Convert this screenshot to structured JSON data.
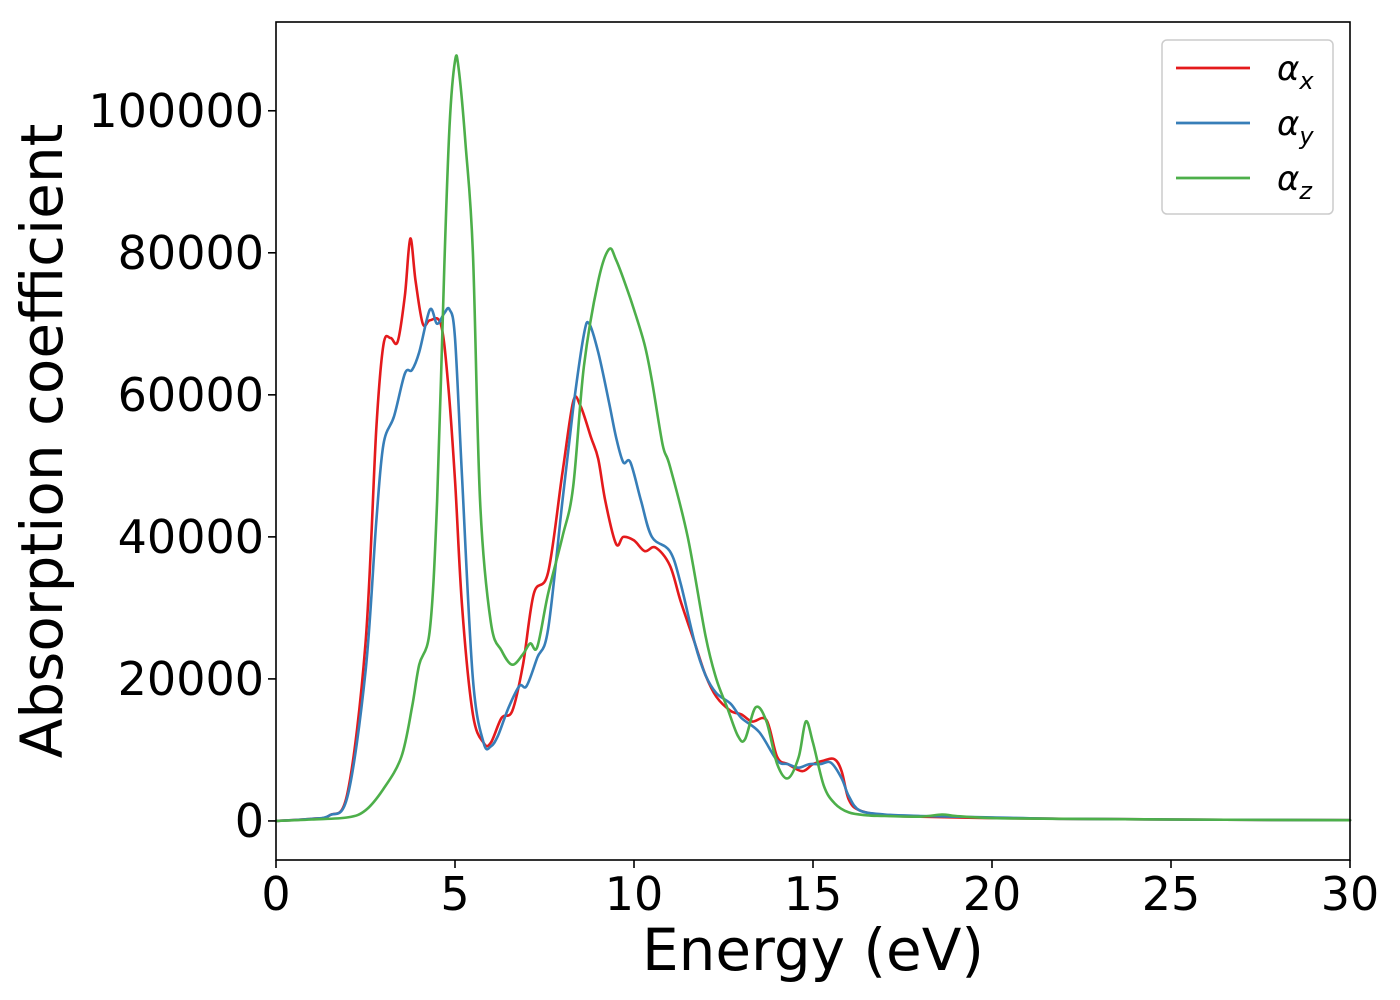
{
  "chart_data": {
    "type": "line",
    "title": "",
    "xlabel": "Energy (eV)",
    "ylabel": "Absorption coefficient",
    "xlim": [
      0,
      30
    ],
    "ylim": [
      -5500,
      112500
    ],
    "x_ticks": [
      0,
      5,
      10,
      15,
      20,
      25,
      30
    ],
    "x_tick_labels": [
      "0",
      "5",
      "10",
      "15",
      "20",
      "25",
      "30"
    ],
    "y_ticks": [
      0,
      20000,
      40000,
      60000,
      80000,
      100000
    ],
    "y_tick_labels": [
      "0",
      "20000",
      "40000",
      "60000",
      "80000",
      "100000"
    ],
    "grid": false,
    "legend_position": "top-right",
    "series": [
      {
        "name": "αx",
        "symbol": "α",
        "subscript": "x",
        "color": "#e41a1c",
        "x": [
          0,
          1.0,
          1.5,
          2.0,
          2.5,
          2.8,
          3.0,
          3.2,
          3.4,
          3.6,
          3.75,
          3.9,
          4.1,
          4.3,
          4.6,
          4.8,
          5.0,
          5.2,
          5.5,
          5.8,
          6.0,
          6.3,
          6.6,
          6.9,
          7.2,
          7.6,
          8.0,
          8.3,
          8.5,
          8.8,
          9.0,
          9.2,
          9.5,
          9.7,
          10.0,
          10.3,
          10.6,
          11.0,
          11.3,
          11.7,
          12.0,
          12.3,
          12.7,
          13.0,
          13.3,
          13.7,
          14.0,
          14.3,
          14.7,
          15.0,
          15.3,
          15.6,
          15.8,
          16.0,
          16.3,
          17.0,
          18.0,
          19.0,
          20.0,
          22.0,
          25.0,
          30.0
        ],
        "y": [
          0,
          300,
          800,
          4000,
          25000,
          55000,
          67000,
          68000,
          67500,
          74000,
          82000,
          76000,
          70000,
          70500,
          70000,
          62000,
          48000,
          30000,
          15000,
          11000,
          11000,
          14500,
          15500,
          22000,
          32000,
          35000,
          49000,
          59000,
          58500,
          54000,
          51000,
          45000,
          39000,
          40000,
          39500,
          38000,
          38500,
          36000,
          31000,
          25000,
          20500,
          17500,
          15500,
          15000,
          14000,
          14200,
          9000,
          8000,
          7000,
          8000,
          8500,
          8700,
          7000,
          3000,
          1500,
          800,
          600,
          500,
          400,
          300,
          200,
          100
        ]
      },
      {
        "name": "αy",
        "symbol": "α",
        "subscript": "y",
        "color": "#377eb8",
        "x": [
          0,
          1.0,
          1.5,
          2.0,
          2.5,
          2.8,
          3.0,
          3.3,
          3.6,
          3.8,
          4.0,
          4.3,
          4.5,
          4.7,
          4.85,
          5.0,
          5.2,
          5.5,
          5.8,
          6.0,
          6.2,
          6.5,
          6.8,
          7.0,
          7.3,
          7.6,
          8.0,
          8.3,
          8.6,
          8.75,
          9.0,
          9.3,
          9.5,
          9.7,
          9.9,
          10.2,
          10.5,
          11.0,
          11.3,
          11.7,
          12.0,
          12.3,
          12.7,
          13.0,
          13.5,
          14.0,
          14.3,
          14.6,
          14.9,
          15.2,
          15.5,
          15.8,
          16.0,
          16.3,
          17.0,
          18.0,
          19.0,
          20.0,
          22.0,
          25.0,
          30.0
        ],
        "y": [
          0,
          300,
          800,
          3500,
          21000,
          42000,
          53000,
          57000,
          63000,
          63500,
          66000,
          72000,
          70000,
          71500,
          72000,
          68000,
          48000,
          20000,
          11000,
          10500,
          12000,
          16000,
          19000,
          19000,
          23000,
          27000,
          45000,
          58000,
          68500,
          70000,
          66000,
          59000,
          54000,
          50500,
          50500,
          45000,
          40000,
          38000,
          33500,
          25000,
          20500,
          18000,
          16500,
          14500,
          12500,
          8500,
          8000,
          7500,
          8000,
          8000,
          8200,
          6000,
          3500,
          1500,
          900,
          700,
          600,
          500,
          300,
          200,
          100
        ]
      },
      {
        "name": "αz",
        "symbol": "α",
        "subscript": "z",
        "color": "#4daf4a",
        "x": [
          0,
          1.0,
          2.0,
          2.5,
          3.0,
          3.5,
          3.8,
          4.0,
          4.3,
          4.5,
          4.7,
          4.85,
          5.0,
          5.1,
          5.3,
          5.5,
          5.7,
          6.0,
          6.3,
          6.6,
          6.9,
          7.1,
          7.3,
          7.6,
          8.0,
          8.3,
          8.6,
          9.0,
          9.3,
          9.5,
          9.8,
          10.0,
          10.3,
          10.5,
          10.8,
          11.0,
          11.5,
          12.0,
          12.3,
          12.6,
          12.9,
          13.1,
          13.4,
          13.7,
          14.0,
          14.3,
          14.6,
          14.8,
          15.0,
          15.3,
          15.6,
          16.0,
          16.5,
          17.0,
          18.0,
          18.6,
          19.0,
          20.0,
          22.0,
          25.0,
          30.0
        ],
        "y": [
          0,
          200,
          500,
          1500,
          4500,
          9000,
          16000,
          22000,
          27000,
          45000,
          78000,
          98000,
          107000,
          106000,
          95000,
          80000,
          45000,
          28000,
          24000,
          22000,
          23500,
          25000,
          24500,
          32000,
          40000,
          47000,
          64000,
          76000,
          80500,
          79000,
          75000,
          72000,
          67000,
          62000,
          53000,
          50000,
          40000,
          26000,
          20000,
          16000,
          12000,
          11500,
          16000,
          14000,
          8000,
          6000,
          9000,
          14000,
          11000,
          5000,
          2500,
          1200,
          800,
          700,
          600,
          900,
          700,
          400,
          300,
          200,
          100
        ]
      }
    ]
  }
}
